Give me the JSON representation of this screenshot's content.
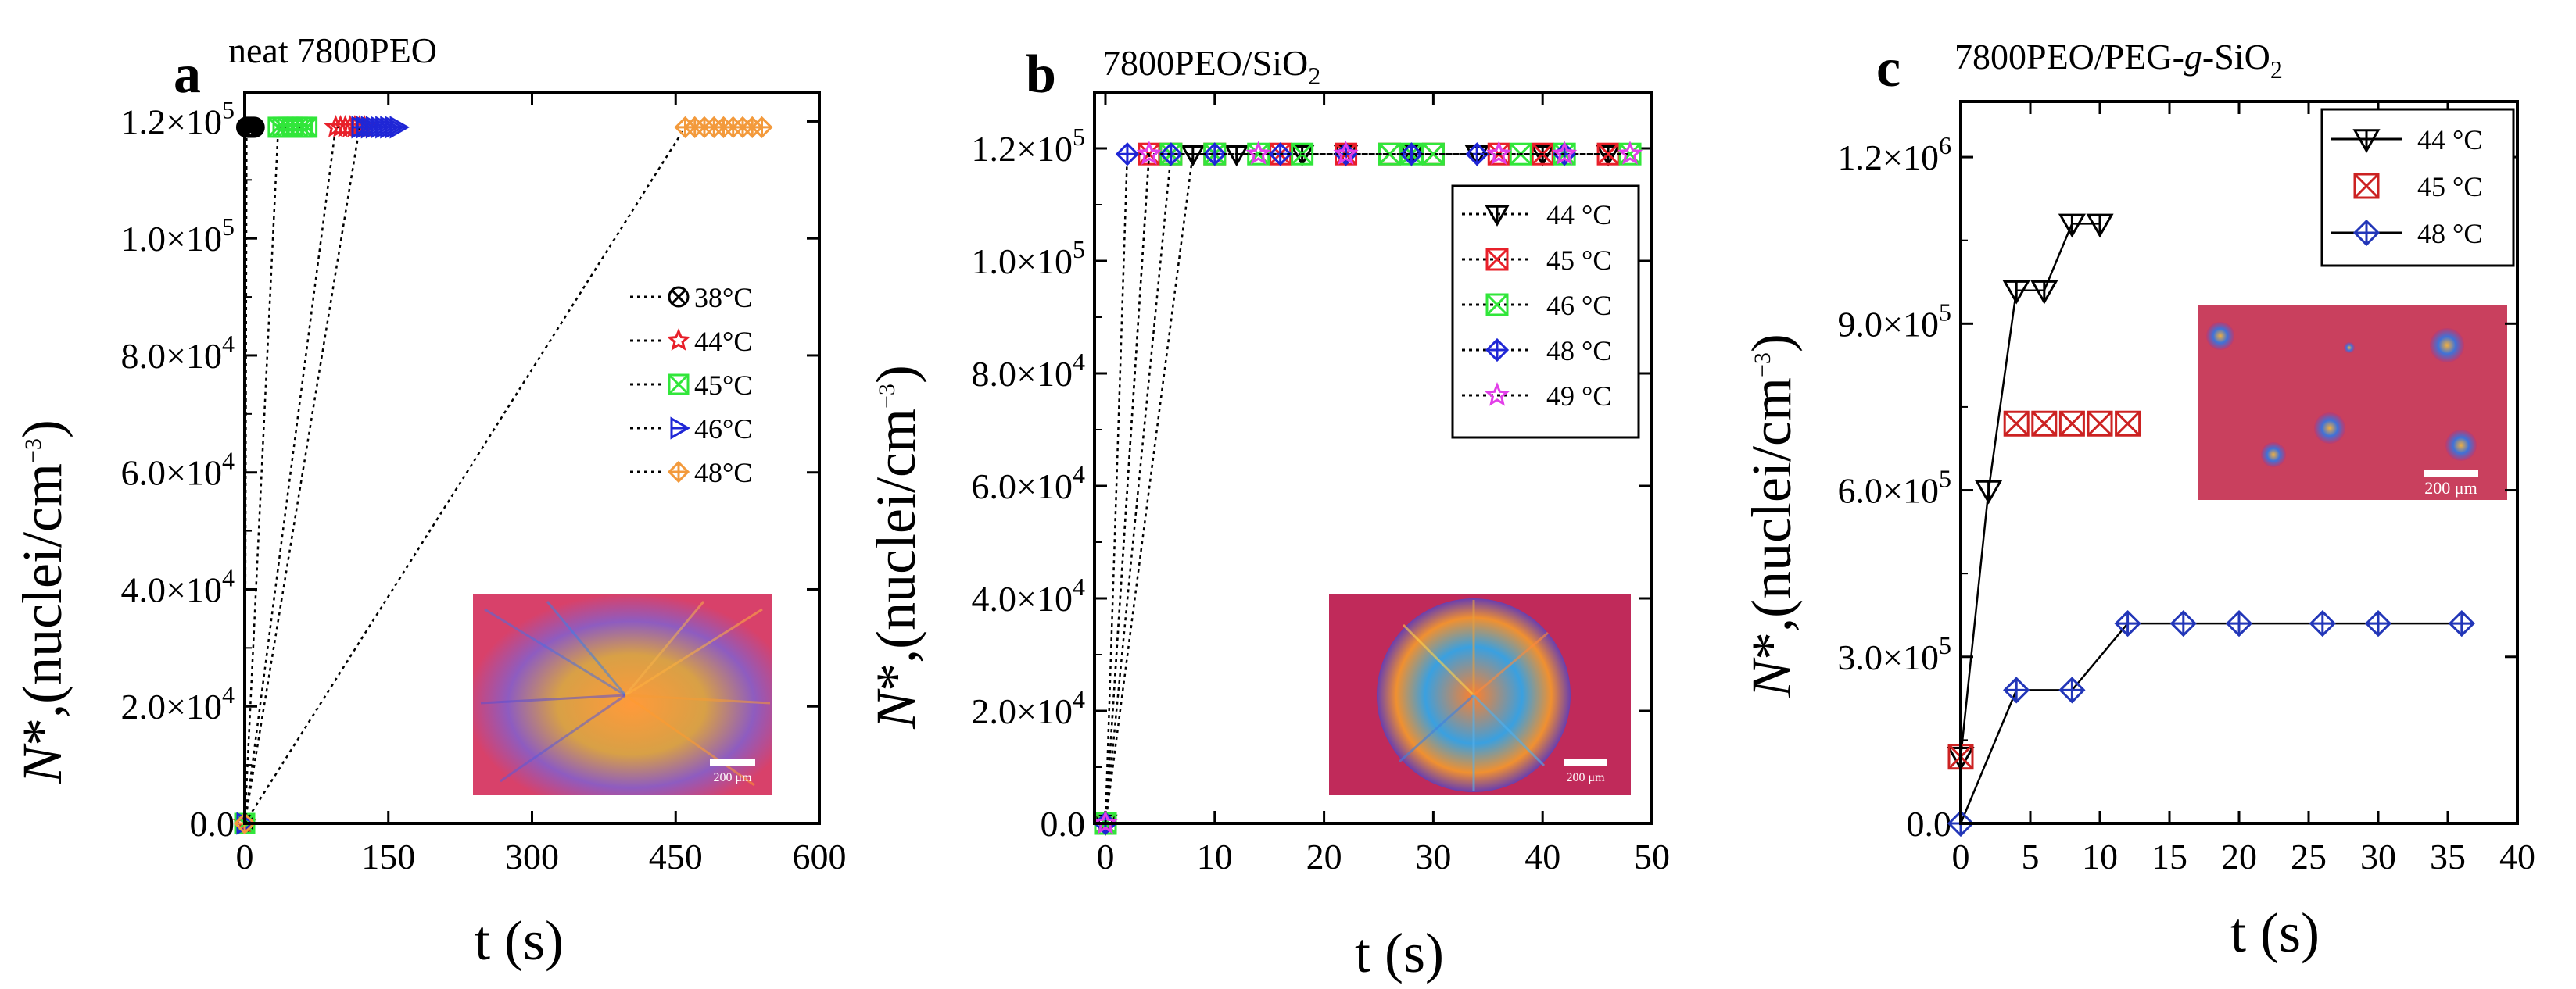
{
  "figure": {
    "panels": [
      {
        "letter": "a",
        "title": "neat 7800PEO"
      },
      {
        "letter": "b",
        "title_main": "7800PEO/SiO",
        "title_sub": "2"
      },
      {
        "letter": "c",
        "title_main": "7800PEO/PEG-",
        "title_italic": "g",
        "title_tail": "-SiO",
        "title_sub": "2"
      }
    ],
    "common": {
      "ylabel_italic": "N",
      "ylabel_rest": "*,(nuclei/cm",
      "ylabel_sup": "−3",
      "ylabel_close": ")",
      "xlabel": "t (s)",
      "scale_bar_label": "200 μm"
    },
    "colors": {
      "black": "#000000",
      "red": "#e8202a",
      "green": "#31e63a",
      "blue": "#1f26d6",
      "orange": "#f39a3c",
      "magenta": "#e23ee8",
      "darkred": "#cc2222",
      "navy": "#2236b8"
    }
  },
  "chart_data": [
    {
      "type": "scatter",
      "panel": "a",
      "title": "neat 7800PEO",
      "xlabel": "t (s)",
      "ylabel": "N*,(nuclei/cm−3)",
      "xlim": [
        0,
        600
      ],
      "ylim": [
        0,
        125000
      ],
      "xticks": [
        0,
        150,
        300,
        450,
        600
      ],
      "xtick_labels": [
        "0",
        "150",
        "300",
        "450",
        "600"
      ],
      "yticks": [
        0,
        20000,
        40000,
        60000,
        80000,
        100000,
        120000
      ],
      "ytick_labels": [
        {
          "mant": "0.0",
          "exp": ""
        },
        {
          "mant": "2.0×10",
          "exp": "4"
        },
        {
          "mant": "4.0×10",
          "exp": "4"
        },
        {
          "mant": "6.0×10",
          "exp": "4"
        },
        {
          "mant": "8.0×10",
          "exp": "4"
        },
        {
          "mant": "1.0×10",
          "exp": "5"
        },
        {
          "mant": "1.2×10",
          "exp": "5"
        }
      ],
      "legend_position": "middle-right",
      "inset": "micrograph",
      "series": [
        {
          "name": "38°C",
          "color": "#000000",
          "marker": "xcircle",
          "line": "dotted",
          "x": [
            0,
            2,
            3,
            4,
            5,
            6,
            7,
            8,
            9,
            10
          ],
          "y": [
            0,
            119000,
            119000,
            119000,
            119000,
            119000,
            119000,
            119000,
            119000,
            119000
          ]
        },
        {
          "name": "44°C",
          "color": "#e8202a",
          "marker": "star",
          "line": "dotted",
          "x": [
            0,
            95,
            100,
            105,
            110,
            115,
            120,
            125
          ],
          "y": [
            0,
            119000,
            119000,
            119000,
            119000,
            119000,
            119000,
            119000
          ]
        },
        {
          "name": "45°C",
          "color": "#31e63a",
          "marker": "xsquare",
          "line": "dotted",
          "x": [
            0,
            35,
            40,
            45,
            50,
            55,
            60,
            65
          ],
          "y": [
            0,
            119000,
            119000,
            119000,
            119000,
            119000,
            119000,
            119000
          ]
        },
        {
          "name": "46°C",
          "color": "#1f26d6",
          "marker": "triright",
          "line": "dotted",
          "x": [
            0,
            120,
            125,
            130,
            135,
            140,
            145,
            150,
            155,
            160
          ],
          "y": [
            0,
            119000,
            119000,
            119000,
            119000,
            119000,
            119000,
            119000,
            119000,
            119000
          ]
        },
        {
          "name": "48°C",
          "color": "#f39a3c",
          "marker": "xdiamond",
          "line": "dotted",
          "x": [
            0,
            460,
            470,
            480,
            490,
            500,
            510,
            520,
            530,
            540
          ],
          "y": [
            0,
            119000,
            119000,
            119000,
            119000,
            119000,
            119000,
            119000,
            119000,
            119000
          ]
        }
      ]
    },
    {
      "type": "scatter",
      "panel": "b",
      "title": "7800PEO/SiO2",
      "xlabel": "t (s)",
      "ylabel": "N*,(nuclei/cm−3)",
      "xlim": [
        -1,
        50
      ],
      "ylim": [
        0,
        130000
      ],
      "xticks": [
        0,
        10,
        20,
        30,
        40,
        50
      ],
      "xtick_labels": [
        "0",
        "10",
        "20",
        "30",
        "40",
        "50"
      ],
      "yticks": [
        0,
        20000,
        40000,
        60000,
        80000,
        100000,
        120000
      ],
      "ytick_labels": [
        {
          "mant": "0.0",
          "exp": ""
        },
        {
          "mant": "2.0×10",
          "exp": "4"
        },
        {
          "mant": "4.0×10",
          "exp": "4"
        },
        {
          "mant": "6.0×10",
          "exp": "4"
        },
        {
          "mant": "8.0×10",
          "exp": "4"
        },
        {
          "mant": "1.0×10",
          "exp": "5"
        },
        {
          "mant": "1.2×10",
          "exp": "5"
        }
      ],
      "legend_position": "top-right",
      "inset": "micrograph",
      "series": [
        {
          "name": "44 °C",
          "color": "#000000",
          "marker": "tridown",
          "line": "dotted",
          "x": [
            0,
            8,
            12,
            18,
            22,
            28,
            34,
            40,
            46
          ],
          "y": [
            0,
            119000,
            119000,
            119000,
            119000,
            119000,
            119000,
            119000,
            119000
          ]
        },
        {
          "name": "45 °C",
          "color": "#e8202a",
          "marker": "xsquare",
          "line": "dotted",
          "x": [
            0,
            4,
            6,
            10,
            16,
            22,
            26,
            30,
            36,
            40,
            46
          ],
          "y": [
            0,
            119000,
            119000,
            119000,
            119000,
            119000,
            119000,
            119000,
            119000,
            119000,
            119000
          ]
        },
        {
          "name": "46 °C",
          "color": "#31e63a",
          "marker": "xsquare",
          "line": "dotted",
          "x": [
            0,
            6,
            10,
            14,
            18,
            26,
            28,
            30,
            38,
            42,
            48
          ],
          "y": [
            0,
            119000,
            119000,
            119000,
            119000,
            119000,
            119000,
            119000,
            119000,
            119000,
            119000
          ]
        },
        {
          "name": "48 °C",
          "color": "#1f26d6",
          "marker": "xdiamond",
          "line": "dotted",
          "x": [
            0,
            2,
            6,
            10,
            16,
            22,
            28,
            34,
            42
          ],
          "y": [
            0,
            119000,
            119000,
            119000,
            119000,
            119000,
            119000,
            119000,
            119000
          ]
        },
        {
          "name": "49 °C",
          "color": "#e23ee8",
          "marker": "star",
          "line": "dotted",
          "x": [
            0,
            4,
            14,
            22,
            36,
            42,
            48
          ],
          "y": [
            0,
            119000,
            119000,
            119000,
            119000,
            119000,
            119000
          ]
        }
      ]
    },
    {
      "type": "line",
      "panel": "c",
      "title": "7800PEO/PEG-g-SiO2",
      "xlabel": "t (s)",
      "ylabel": "N*,(nuclei/cm−3)",
      "xlim": [
        0,
        40
      ],
      "ylim": [
        0,
        1300000
      ],
      "xticks": [
        0,
        5,
        10,
        15,
        20,
        25,
        30,
        35,
        40
      ],
      "xtick_labels": [
        "0",
        "5",
        "10",
        "15",
        "20",
        "25",
        "30",
        "35",
        "40"
      ],
      "yticks": [
        0,
        300000,
        600000,
        900000,
        1200000
      ],
      "ytick_labels": [
        {
          "mant": "0.0",
          "exp": ""
        },
        {
          "mant": "3.0×10",
          "exp": "5"
        },
        {
          "mant": "6.0×10",
          "exp": "5"
        },
        {
          "mant": "9.0×10",
          "exp": "5"
        },
        {
          "mant": "1.2×10",
          "exp": "6"
        }
      ],
      "legend_position": "top-right",
      "inset": "micrograph",
      "series": [
        {
          "name": "44 °C",
          "color": "#000000",
          "marker": "tridown",
          "line": "solid",
          "x": [
            0,
            2,
            4,
            6,
            8,
            10
          ],
          "y": [
            120000,
            600000,
            960000,
            960000,
            1080000,
            1080000
          ]
        },
        {
          "name": "45 °C",
          "color": "#cc2222",
          "marker": "xsquare",
          "line": "none",
          "x": [
            0,
            4,
            6,
            8,
            10,
            12
          ],
          "y": [
            120000,
            720000,
            720000,
            720000,
            720000,
            720000
          ]
        },
        {
          "name": "48 °C",
          "color": "#2236b8",
          "marker": "xdiamond",
          "line": "solid",
          "x": [
            0,
            4,
            8,
            12,
            16,
            20,
            26,
            30,
            36
          ],
          "y": [
            0,
            240000,
            240000,
            360000,
            360000,
            360000,
            360000,
            360000,
            360000
          ]
        }
      ]
    }
  ]
}
